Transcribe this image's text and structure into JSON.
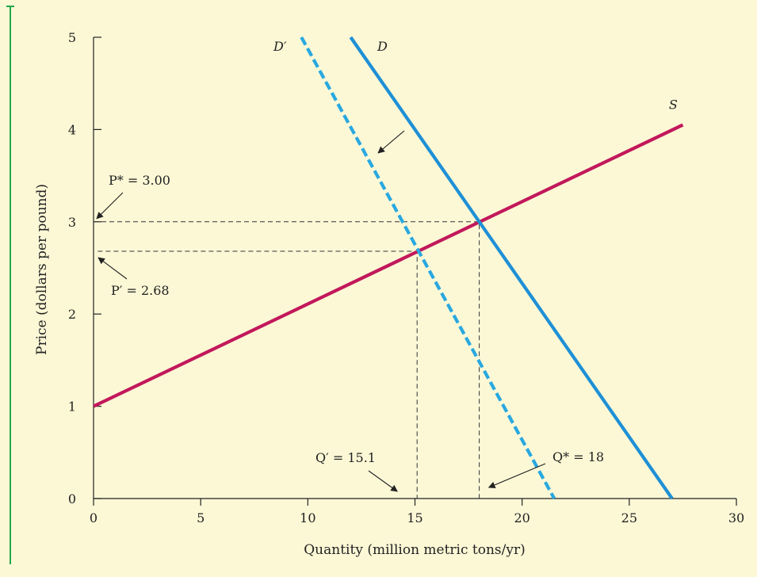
{
  "chart_data": {
    "type": "line",
    "xlabel": "Quantity (million metric tons/yr)",
    "ylabel": "Price (dollars per pound)",
    "xlim": [
      0,
      30
    ],
    "ylim": [
      0,
      5
    ],
    "x_ticks": [
      0,
      5,
      10,
      15,
      20,
      25,
      30
    ],
    "y_ticks": [
      0,
      1,
      2,
      3,
      4,
      5
    ],
    "grid": false,
    "legend": "none",
    "series": [
      {
        "name": "S",
        "style": "solid",
        "color": "#c2185b",
        "points": [
          [
            0,
            1.0
          ],
          [
            27.5,
            4.05
          ]
        ]
      },
      {
        "name": "D",
        "style": "solid",
        "color": "#1e90d6",
        "points": [
          [
            12.0,
            5.0
          ],
          [
            27.0,
            0.0
          ]
        ]
      },
      {
        "name": "D′",
        "style": "dashed",
        "color": "#29a8e0",
        "points": [
          [
            9.7,
            5.0
          ],
          [
            21.5,
            0.0
          ]
        ]
      }
    ],
    "reference_lines": [
      {
        "points": [
          [
            0,
            3.0
          ],
          [
            18,
            3.0
          ],
          [
            18,
            0
          ]
        ]
      },
      {
        "points": [
          [
            0.2,
            2.68
          ],
          [
            15.1,
            2.68
          ],
          [
            15.1,
            0
          ]
        ]
      }
    ],
    "annotations": {
      "p_star": {
        "text": "P* = 3.00",
        "x": 0,
        "y": 3.0
      },
      "p_prime": {
        "text": "P′ = 2.68",
        "x": 0,
        "y": 2.68
      },
      "q_star": {
        "text": "Q* = 18",
        "x": 18,
        "y": 0
      },
      "q_prime": {
        "text": "Q′ = 15.1",
        "x": 15.1,
        "y": 0
      },
      "shift_arrow": {
        "text": ""
      }
    }
  },
  "colors": {
    "background": "#fcf8d6",
    "frame_accent": "#22a84a",
    "axis": "#222222",
    "guide": "#333333"
  }
}
